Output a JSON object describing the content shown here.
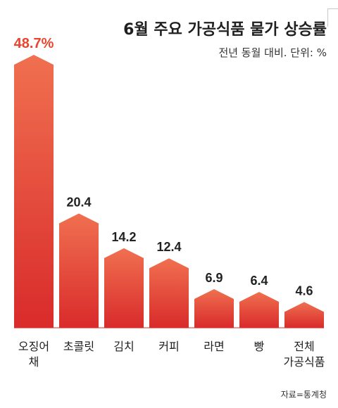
{
  "chart_data": {
    "type": "bar",
    "title": "6월 주요 가공식품 물가 상승률",
    "subtitle": "전년 동월 대비. 단위: %",
    "source": "자료=통계청",
    "categories": [
      [
        "오징어",
        "채"
      ],
      [
        "초콜릿"
      ],
      [
        "김치"
      ],
      [
        "커피"
      ],
      [
        "라면"
      ],
      [
        "빵"
      ],
      [
        "전체",
        "가공식품"
      ]
    ],
    "values": [
      48.7,
      20.4,
      14.2,
      12.4,
      6.9,
      6.4,
      4.6
    ],
    "value_labels": [
      "48.7%",
      "20.4",
      "14.2",
      "12.4",
      "6.9",
      "6.4",
      "4.6"
    ],
    "colors": {
      "bar_top": "#f07050",
      "bar_bottom": "#d92b2b",
      "highlight_label": "#e8442e",
      "label": "#222222"
    },
    "grid": false,
    "legend": "none"
  }
}
